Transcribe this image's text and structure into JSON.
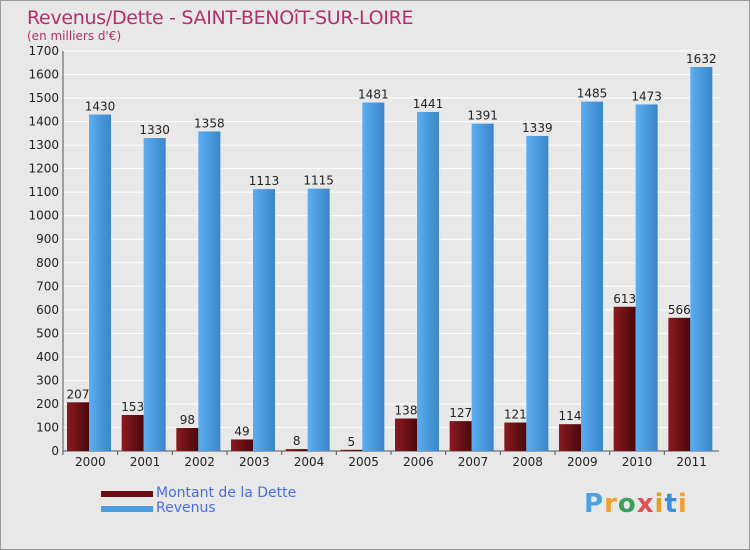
{
  "title": "Revenus/Dette - SAINT-BENOîT-SUR-LOIRE",
  "subtitle": "(en milliers d'€)",
  "logo": {
    "letters": [
      "P",
      "r",
      "o",
      "x",
      "i",
      "t",
      "i"
    ],
    "colors": [
      "#4aa3df",
      "#f0a030",
      "#3aa05a",
      "#e05050",
      "#e0a020",
      "#3a8fd8",
      "#f0a030"
    ]
  },
  "colors": {
    "dette": "#6b0d12",
    "revenus": "#4a9ce0",
    "grid": "#ffffff",
    "background": "#e8e8e8",
    "title": "#b0306b"
  },
  "chart_data": {
    "type": "bar",
    "title": "Revenus/Dette - SAINT-BENOîT-SUR-LOIRE",
    "subtitle": "(en milliers d'€)",
    "categories": [
      "2000",
      "2001",
      "2002",
      "2003",
      "2004",
      "2005",
      "2006",
      "2007",
      "2008",
      "2009",
      "2010",
      "2011"
    ],
    "series": [
      {
        "name": "Montant de la Dette",
        "color": "#6b0d12",
        "values": [
          207,
          153,
          98,
          49,
          8,
          5,
          138,
          127,
          121,
          114,
          613,
          566
        ]
      },
      {
        "name": "Revenus",
        "color": "#4a9ce0",
        "values": [
          1430,
          1330,
          1358,
          1113,
          1115,
          1481,
          1441,
          1391,
          1339,
          1485,
          1473,
          1632
        ]
      }
    ],
    "ylim": [
      0,
      1700
    ],
    "yticks": [
      0,
      100,
      200,
      300,
      400,
      500,
      600,
      700,
      800,
      900,
      1000,
      1100,
      1200,
      1300,
      1400,
      1500,
      1600,
      1700
    ],
    "grid": true,
    "legend_position": "bottom-left"
  }
}
